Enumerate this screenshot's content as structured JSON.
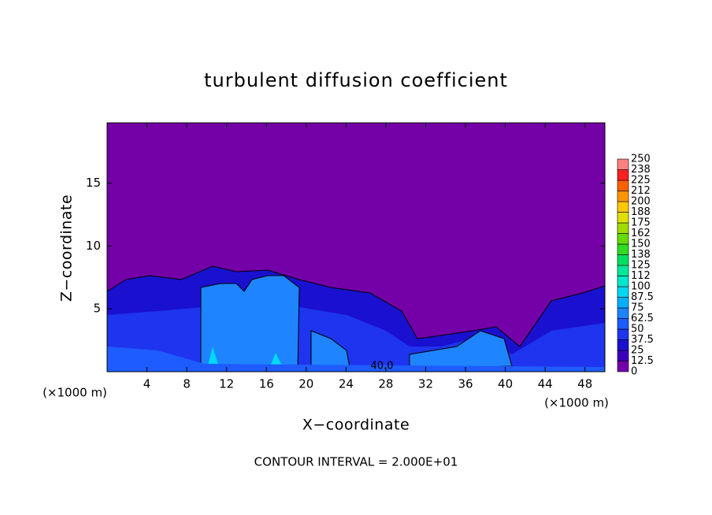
{
  "chart_data": {
    "type": "contour",
    "title": "turbulent diffusion coefficient",
    "x_label": "X−coordinate",
    "y_label": "Z−coordinate",
    "x_unit": "(×1000 m)",
    "footer": "CONTOUR INTERVAL = 2.000E+01",
    "annotation": "40.0",
    "xlim": [
      0,
      50
    ],
    "xticks": [
      4,
      8,
      12,
      16,
      20,
      24,
      28,
      32,
      36,
      40,
      44,
      48
    ],
    "ylim": [
      0,
      19.8
    ],
    "yticks": [
      5,
      10,
      15
    ],
    "colorbar": {
      "levels": [
        0,
        12.5,
        25,
        37.5,
        50,
        62.5,
        75,
        87.5,
        100,
        112,
        125,
        138,
        150,
        162,
        175,
        188,
        200,
        212,
        225,
        238,
        250
      ],
      "colors": [
        "#7400a8",
        "#3c00bc",
        "#1a10d0",
        "#1e34ee",
        "#1e5cff",
        "#1e84ff",
        "#00b0ff",
        "#00d8f4",
        "#00e8cc",
        "#00e89c",
        "#00e060",
        "#30dc20",
        "#64dc00",
        "#a0dc00",
        "#e0e000",
        "#ffc800",
        "#ff9600",
        "#ff6000",
        "#ff2020",
        "#ff8080"
      ]
    }
  }
}
